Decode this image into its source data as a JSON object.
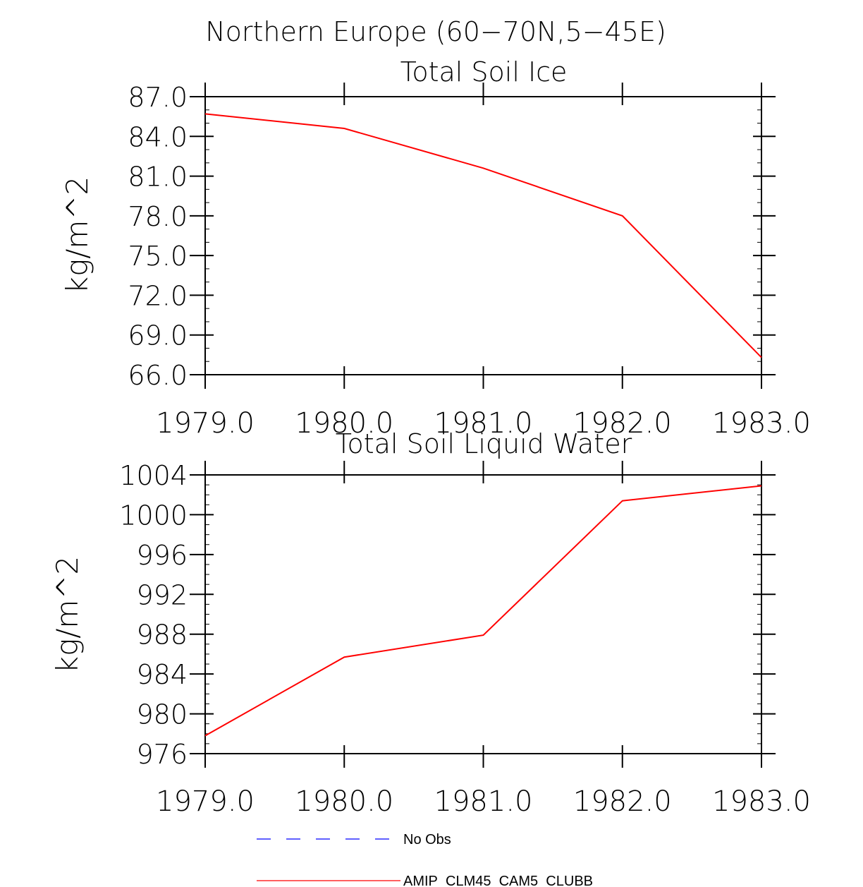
{
  "figure": {
    "title": "Northern Europe (60−70N,5−45E)"
  },
  "chart_data": [
    {
      "type": "line",
      "title": "Total Soil Ice",
      "xlabel": "",
      "ylabel": "kg/m^2",
      "xlim": [
        1979,
        1983
      ],
      "ylim": [
        66,
        87
      ],
      "x_ticks": [
        1979,
        1980,
        1981,
        1982,
        1983
      ],
      "x_tick_labels": [
        "1979.0",
        "1980.0",
        "1981.0",
        "1982.0",
        "1983.0"
      ],
      "y_ticks": [
        66,
        69,
        72,
        75,
        78,
        81,
        84,
        87
      ],
      "y_tick_labels": [
        "66.0",
        "69.0",
        "72.0",
        "75.0",
        "78.0",
        "81.0",
        "84.0",
        "87.0"
      ],
      "y_minor_step": 1,
      "grid": false,
      "series": [
        {
          "name": "AMIP_CLM45_CAM5_CLUBB",
          "color": "#ff0000",
          "x": [
            1979,
            1980,
            1981,
            1982,
            1983
          ],
          "values": [
            85.7,
            84.6,
            81.6,
            78.0,
            67.3
          ]
        }
      ]
    },
    {
      "type": "line",
      "title": "Total Soil Liquid Water",
      "xlabel": "",
      "ylabel": "kg/m^2",
      "xlim": [
        1979,
        1983
      ],
      "ylim": [
        976,
        1004
      ],
      "x_ticks": [
        1979,
        1980,
        1981,
        1982,
        1983
      ],
      "x_tick_labels": [
        "1979.0",
        "1980.0",
        "1981.0",
        "1982.0",
        "1983.0"
      ],
      "y_ticks": [
        976,
        980,
        984,
        988,
        992,
        996,
        1000,
        1004
      ],
      "y_tick_labels": [
        "976",
        "980",
        "984",
        "988",
        "992",
        "996",
        "1000",
        "1004"
      ],
      "y_minor_step": 1,
      "grid": false,
      "series": [
        {
          "name": "AMIP_CLM45_CAM5_CLUBB",
          "color": "#ff0000",
          "x": [
            1979,
            1980,
            1981,
            1982,
            1983
          ],
          "values": [
            977.8,
            985.7,
            987.9,
            1001.4,
            1002.9
          ]
        }
      ]
    }
  ],
  "legend": [
    {
      "label": "No Obs",
      "color": "#0000ff",
      "dashed": true
    },
    {
      "label": "AMIP_CLM45_CAM5_CLUBB",
      "color": "#ff0000",
      "dashed": false
    }
  ]
}
